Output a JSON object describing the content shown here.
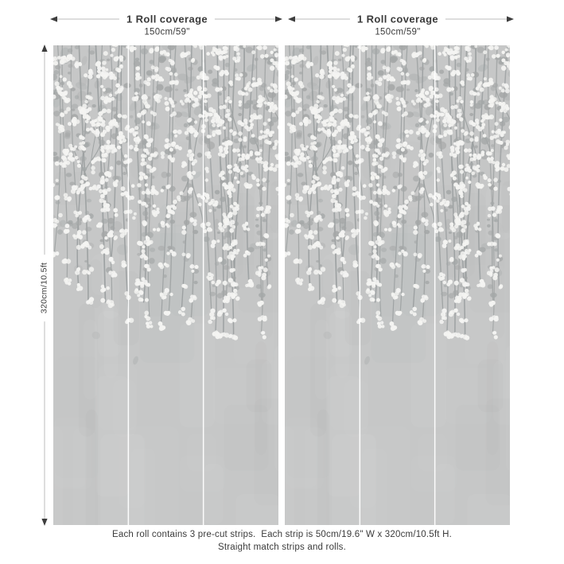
{
  "diagram": {
    "type": "wallpaper-roll-coverage-diagram",
    "panels": {
      "count": 2,
      "strips_per_panel": 3
    },
    "top_annotations": [
      {
        "label": "1 Roll coverage",
        "dimension": "150cm/59\""
      },
      {
        "label": "1 Roll coverage",
        "dimension": "150cm/59\""
      }
    ],
    "side_annotation": {
      "dimension": "320cm/10.5ft"
    },
    "footer": {
      "line1": "Each roll contains 3 pre-cut strips.  Each strip is 50cm/19.6\" W x 320cm/10.5ft H.",
      "line2": "Straight match strips and rolls."
    },
    "colors": {
      "background": "#ffffff",
      "panel_base": "#c6c7c7",
      "stem": "#999d9e",
      "leaf": "#a4a7a7",
      "leaf_faint": "#b3b6b6",
      "flower": "#f4f4f2",
      "divider": "#ffffff",
      "text": "#3b3b3b",
      "dimension_line": "#bdbdbd",
      "arrow": "#3e3e3e"
    }
  }
}
